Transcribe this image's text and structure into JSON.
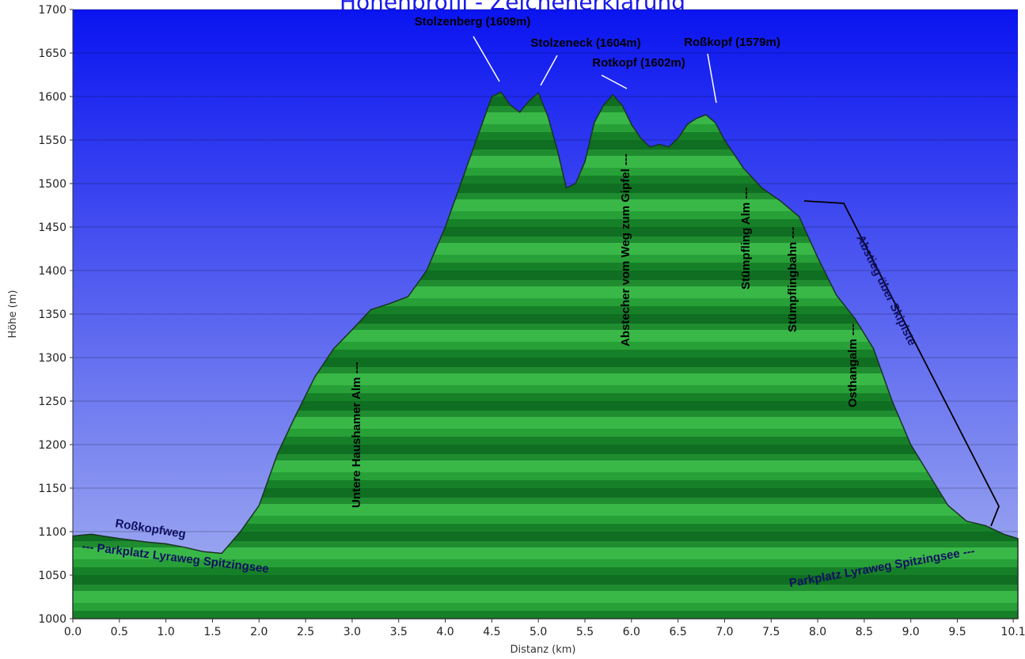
{
  "title": "Höhenprofil - Zeichenerklärung",
  "chart_data": {
    "type": "area",
    "title": "Höhenprofil - Zeichenerklärung",
    "xlabel": "Distanz (km)",
    "ylabel": "Höhe (m)",
    "xlim": [
      0,
      10.15
    ],
    "ylim": [
      1000,
      1700
    ],
    "grid": true,
    "x_ticks": [
      "0.0",
      "0.5",
      "1.0",
      "1.5",
      "2.0",
      "2.5",
      "3.0",
      "3.5",
      "4.0",
      "4.5",
      "5.0",
      "5.5",
      "6.0",
      "6.5",
      "7.0",
      "7.5",
      "8.0",
      "8.5",
      "9.0",
      "9.5",
      "10.1"
    ],
    "y_ticks": [
      "1000",
      "1050",
      "1100",
      "1150",
      "1200",
      "1250",
      "1300",
      "1350",
      "1400",
      "1450",
      "1500",
      "1550",
      "1600",
      "1650",
      "1700"
    ],
    "series": [
      {
        "x": [
          0,
          0.2,
          0.5,
          0.8,
          1.0,
          1.2,
          1.4,
          1.6,
          1.8,
          2.0,
          2.2,
          2.4,
          2.6,
          2.8,
          3.0,
          3.2,
          3.4,
          3.6,
          3.8,
          4.0,
          4.2,
          4.4,
          4.5,
          4.6,
          4.7,
          4.8,
          4.9,
          5.0,
          5.1,
          5.2,
          5.3,
          5.4,
          5.5,
          5.6,
          5.7,
          5.8,
          5.9,
          6.0,
          6.1,
          6.2,
          6.3,
          6.4,
          6.5,
          6.6,
          6.7,
          6.8,
          6.9,
          7.0,
          7.2,
          7.4,
          7.6,
          7.8,
          8.0,
          8.2,
          8.4,
          8.6,
          8.8,
          9.0,
          9.2,
          9.4,
          9.6,
          9.8,
          10.0,
          10.15
        ],
        "y": [
          1095,
          1097,
          1092,
          1088,
          1086,
          1082,
          1077,
          1075,
          1100,
          1130,
          1190,
          1235,
          1278,
          1310,
          1332,
          1355,
          1362,
          1370,
          1400,
          1450,
          1510,
          1570,
          1600,
          1605,
          1590,
          1582,
          1595,
          1604,
          1578,
          1540,
          1495,
          1500,
          1525,
          1570,
          1590,
          1602,
          1590,
          1568,
          1552,
          1542,
          1545,
          1542,
          1552,
          1568,
          1575,
          1579,
          1570,
          1550,
          1518,
          1495,
          1480,
          1462,
          1415,
          1372,
          1345,
          1310,
          1250,
          1200,
          1165,
          1130,
          1112,
          1107,
          1097,
          1092
        ]
      }
    ]
  },
  "annotations": {
    "stolzenberg": "Stolzenberg (1609m)",
    "stolzeneck": "Stolzeneck (1604m)",
    "rotkopf": "Rotkopf (1602m)",
    "rosskopf": "Roßkopf (1579m)",
    "rosskopfweg": "Roßkopfweg",
    "parkplatz_left": "--- Parkplatz Lyraweg Spitzingsee",
    "parkplatz_right": "Parkplatz Lyraweg Spitzingsee ---",
    "haushamer": "Untere Haushamer Alm ---",
    "abstecher": "Abstecher vom Weg zum Gipfel ---",
    "stuempfling_alm": "Stümpfling Alm ---",
    "stuempflingbahn": "Stümpflingbahn ---",
    "osthangalm": "Osthangalm ---",
    "abstieg": "Abstieg über Skipiste"
  },
  "colors": {
    "sky_top": "#0a14f0",
    "sky_bottom": "#a8b4f0",
    "area_light": "#3fbf4a",
    "area_dark": "#0e6a1e",
    "outline": "#1a3320",
    "title_link": "#1a1aee"
  }
}
